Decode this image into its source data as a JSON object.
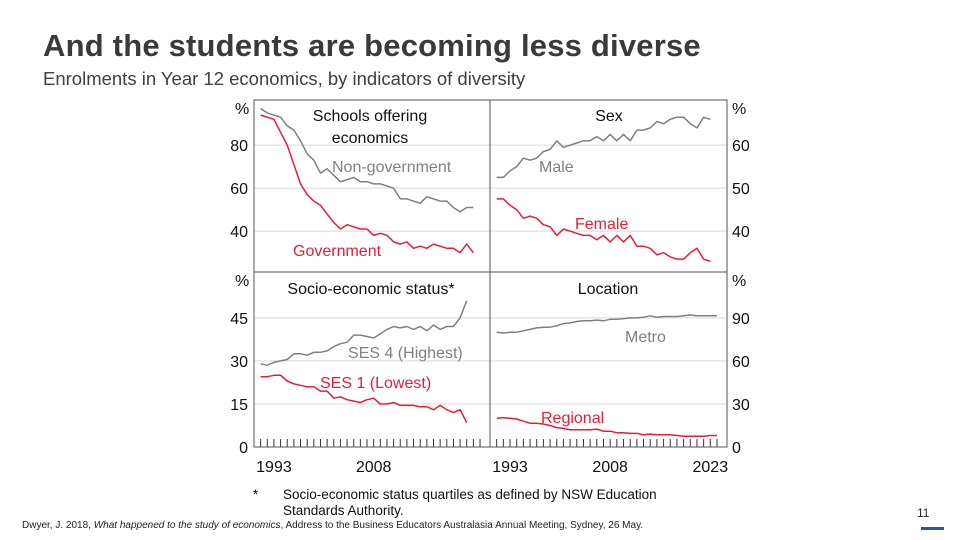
{
  "slide": {
    "title": "And the students are becoming less diverse",
    "subtitle": "Enrolments in Year 12 economics, by indicators of diversity",
    "footnote_marker": "*",
    "footnote_line1": "Socio-economic status quartiles as defined by NSW Education",
    "footnote_line2": "Standards Authority.",
    "citation_author": "Dwyer, J. 2018, ",
    "citation_title": "What happened to the study of economics",
    "citation_rest": ", Address to the Business Educators Australasia Annual Meeting, Sydney, 26 May.",
    "page_number": "11",
    "accent_color": "#2f5597"
  },
  "chart_data": [
    {
      "type": "line",
      "title": [
        "Schools offering",
        "economics"
      ],
      "unit": "%",
      "axis_side": "left",
      "ylim": [
        21,
        101
      ],
      "yticks": [
        40,
        60,
        80
      ],
      "xlim": [
        1990,
        2025.5
      ],
      "grid": true,
      "x": [
        1991,
        1992,
        1993,
        1994,
        1995,
        1996,
        1997,
        1998,
        1999,
        2000,
        2001,
        2002,
        2003,
        2004,
        2005,
        2006,
        2007,
        2008,
        2009,
        2010,
        2011,
        2012,
        2013,
        2014,
        2015,
        2016,
        2017,
        2018,
        2019,
        2020,
        2021,
        2022,
        2023
      ],
      "series": [
        {
          "name": "Non-government",
          "color": "#808080",
          "values": [
            97,
            95,
            94,
            93,
            89,
            87,
            82,
            76,
            73,
            67,
            69,
            66,
            63,
            64,
            65,
            63,
            63,
            62,
            62,
            61,
            60,
            55,
            55,
            54,
            53,
            56,
            55,
            54,
            54,
            51,
            49,
            51,
            51
          ]
        },
        {
          "name": "Government",
          "color": "#e0203a",
          "values": [
            94,
            93,
            92,
            86,
            80,
            71,
            62,
            57,
            54,
            52,
            48,
            44,
            41,
            43,
            42,
            41,
            41,
            38,
            39,
            38,
            35,
            34,
            35,
            32,
            33,
            32,
            34,
            33,
            32,
            32,
            30,
            34,
            30
          ]
        }
      ]
    },
    {
      "type": "line",
      "title": [
        "Sex"
      ],
      "unit": "%",
      "axis_side": "right",
      "ylim": [
        30.5,
        70.5
      ],
      "yticks": [
        40,
        50,
        60
      ],
      "xlim": [
        1990,
        2025.5
      ],
      "grid": true,
      "x": [
        1991,
        1992,
        1993,
        1994,
        1995,
        1996,
        1997,
        1998,
        1999,
        2000,
        2001,
        2002,
        2003,
        2004,
        2005,
        2006,
        2007,
        2008,
        2009,
        2010,
        2011,
        2012,
        2013,
        2014,
        2015,
        2016,
        2017,
        2018,
        2019,
        2020,
        2021,
        2022,
        2023
      ],
      "series": [
        {
          "name": "Male",
          "color": "#808080",
          "values": [
            52.5,
            52.5,
            54,
            55,
            57,
            56.5,
            57,
            58.5,
            59,
            61,
            59.5,
            60,
            60.5,
            61,
            61,
            62,
            61,
            62.5,
            61,
            62.5,
            61,
            63.5,
            63.5,
            64,
            65.5,
            65,
            66,
            66.5,
            66.5,
            65,
            64,
            66.5,
            66
          ]
        },
        {
          "name": "Female",
          "color": "#e0203a",
          "values": [
            47.5,
            47.5,
            46,
            45,
            43,
            43.5,
            43,
            41.5,
            41,
            39,
            40.5,
            40,
            39.5,
            39,
            39,
            38,
            39,
            37.5,
            39,
            37.5,
            39,
            36.5,
            36.5,
            36,
            34.5,
            35,
            34,
            33.5,
            33.5,
            35,
            36,
            33.5,
            33
          ]
        }
      ]
    },
    {
      "type": "line",
      "title": [
        "Socio-economic status*"
      ],
      "unit": "%",
      "axis_side": "left",
      "ylim": [
        0,
        61
      ],
      "yticks": [
        0,
        15,
        30,
        45
      ],
      "xlim": [
        1990,
        2025.5
      ],
      "xticks": [
        1993,
        2008
      ],
      "grid": true,
      "x": [
        1991,
        1992,
        1993,
        1994,
        1995,
        1996,
        1997,
        1998,
        1999,
        2000,
        2001,
        2002,
        2003,
        2004,
        2005,
        2006,
        2007,
        2008,
        2009,
        2010,
        2011,
        2012,
        2013,
        2014,
        2015,
        2016,
        2017,
        2018,
        2019,
        2020,
        2021,
        2022
      ],
      "series": [
        {
          "name": "SES 4 (Highest)",
          "color": "#808080",
          "values": [
            29,
            28.5,
            29.5,
            30,
            30.5,
            32.5,
            32.5,
            32,
            33,
            33,
            33.5,
            35,
            36,
            36.5,
            39,
            39,
            38.5,
            38,
            39.5,
            41,
            42,
            41.5,
            42,
            41,
            42,
            40.5,
            42.5,
            41,
            42,
            42,
            45,
            51
          ]
        },
        {
          "name": "SES 1 (Lowest)",
          "color": "#e0203a",
          "values": [
            24.5,
            24.5,
            25,
            25,
            23,
            22,
            21.5,
            21,
            21,
            19.5,
            19.5,
            17,
            17.5,
            16.5,
            16,
            15.5,
            16.5,
            17,
            15,
            15,
            15.5,
            14.5,
            14.5,
            14.5,
            14,
            14,
            13,
            14.5,
            13,
            12,
            13,
            8.5
          ]
        }
      ]
    },
    {
      "type": "line",
      "title": [
        "Location"
      ],
      "unit": "%",
      "axis_side": "right",
      "ylim": [
        0,
        122
      ],
      "yticks": [
        0,
        30,
        60,
        90
      ],
      "xlim": [
        1990,
        2025.5
      ],
      "xticks": [
        1993,
        2008,
        2023
      ],
      "grid": true,
      "x": [
        1991,
        1992,
        1993,
        1994,
        1995,
        1996,
        1997,
        1998,
        1999,
        2000,
        2001,
        2002,
        2003,
        2004,
        2005,
        2006,
        2007,
        2008,
        2009,
        2010,
        2011,
        2012,
        2013,
        2014,
        2015,
        2016,
        2017,
        2018,
        2019,
        2020,
        2021,
        2022,
        2023,
        2024
      ],
      "series": [
        {
          "name": "Metro",
          "color": "#808080",
          "values": [
            80,
            79.5,
            80,
            80,
            81,
            82,
            83,
            83.5,
            83.5,
            84.5,
            86,
            86.5,
            87.5,
            88,
            88,
            88.5,
            88,
            89,
            89,
            89.5,
            90,
            90,
            90.5,
            91.5,
            90.5,
            91,
            91,
            91,
            91.5,
            92,
            91.5,
            91.5,
            91.5,
            91.5
          ]
        },
        {
          "name": "Regional",
          "color": "#e0203a",
          "values": [
            20,
            20.5,
            20,
            19.5,
            18,
            16.5,
            16.5,
            16,
            15,
            13.5,
            13,
            12,
            12,
            12,
            12,
            12.5,
            11,
            11,
            10,
            10,
            9.5,
            9.5,
            8.5,
            9,
            8.5,
            8.5,
            8.5,
            8,
            7.5,
            7.5,
            7.5,
            7.5,
            8,
            8
          ]
        }
      ]
    }
  ]
}
